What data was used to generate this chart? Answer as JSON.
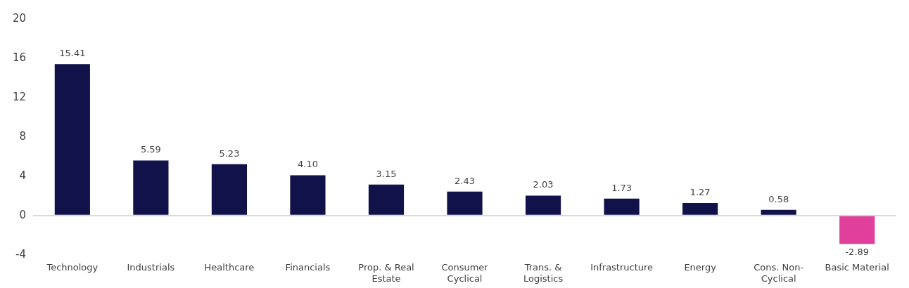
{
  "chart_data": {
    "type": "bar",
    "categories": [
      "Technology",
      "Industrials",
      "Healthcare",
      "Financials",
      "Prop. & Real Estate",
      "Consumer Cyclical",
      "Trans. & Logistics",
      "Infrastructure",
      "Energy",
      "Cons. Non-Cyclical",
      "Basic Material"
    ],
    "values": [
      15.41,
      5.59,
      5.23,
      4.1,
      3.15,
      2.43,
      2.03,
      1.73,
      1.27,
      0.58,
      -2.89
    ],
    "value_labels": [
      "15.41",
      "5.59",
      "5.23",
      "4.10",
      "3.15",
      "2.43",
      "2.03",
      "1.73",
      "1.27",
      "0.58",
      "-2.89"
    ],
    "colors": [
      "#12124a",
      "#12124a",
      "#12124a",
      "#12124a",
      "#12124a",
      "#12124a",
      "#12124a",
      "#12124a",
      "#12124a",
      "#12124a",
      "#e0409c"
    ],
    "ylim": [
      -4,
      20
    ],
    "yticks": [
      -4,
      0,
      4,
      8,
      12,
      16,
      20
    ],
    "legend": false
  }
}
